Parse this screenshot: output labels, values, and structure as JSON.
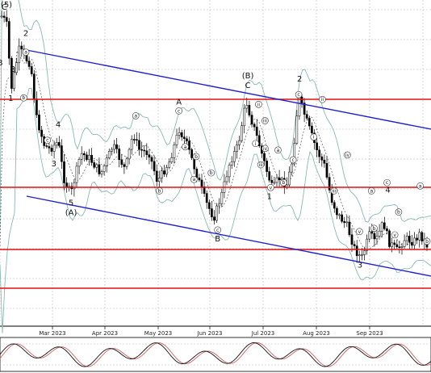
{
  "chart_data": {
    "type": "candlestick",
    "title": "",
    "xlabel": "",
    "ylabel": "",
    "x_ticks": [
      "Mar 2023",
      "Apr 2023",
      "May 2023",
      "Jun 2023",
      "Jul 2023",
      "Aug 2023",
      "Sep 2023"
    ],
    "grid": true,
    "indicators": [
      "bollinger-bands",
      "stochastic-oscillator"
    ],
    "colors": {
      "grid": "#b7b7b7",
      "candle": "#000000",
      "channel": "#2020d0",
      "support_resistance": "#e01010",
      "bollinger": "#8ab9b0",
      "stoch_main": "#111111",
      "stoch_signal": "#d06060"
    },
    "wave_labels": [
      {
        "text": "(5)",
        "x": 0.015,
        "y": 0.01
      },
      {
        "text": "C",
        "x": 0.01,
        "y": 0.03
      },
      {
        "text": "2",
        "x": 0.06,
        "y": 0.11
      },
      {
        "text": "3",
        "x": 0.03,
        "y": 0.22
      },
      {
        "text": "B",
        "x": 0.0,
        "y": 0.2
      },
      {
        "text": "1",
        "x": 0.025,
        "y": 0.31
      },
      {
        "text": "4",
        "x": 0.135,
        "y": 0.39
      },
      {
        "text": "3",
        "x": 0.125,
        "y": 0.51
      },
      {
        "text": "5",
        "x": 0.165,
        "y": 0.63
      },
      {
        "text": "(A)",
        "x": 0.165,
        "y": 0.66
      },
      {
        "text": "A",
        "x": 0.415,
        "y": 0.32
      },
      {
        "text": "(B)",
        "x": 0.575,
        "y": 0.24
      },
      {
        "text": "C",
        "x": 0.575,
        "y": 0.27
      },
      {
        "text": "B",
        "x": 0.505,
        "y": 0.74
      },
      {
        "text": "2",
        "x": 0.695,
        "y": 0.25
      },
      {
        "text": "1",
        "x": 0.625,
        "y": 0.61
      },
      {
        "text": "4",
        "x": 0.9,
        "y": 0.59
      },
      {
        "text": "3",
        "x": 0.835,
        "y": 0.82
      }
    ],
    "sub_labels": [
      {
        "text": "a",
        "x": 0.06,
        "y": 0.16
      },
      {
        "text": "b",
        "x": 0.055,
        "y": 0.3
      },
      {
        "text": "c",
        "x": 0.11,
        "y": 0.43
      },
      {
        "text": "a",
        "x": 0.315,
        "y": 0.355
      },
      {
        "text": "b",
        "x": 0.37,
        "y": 0.585
      },
      {
        "text": "c",
        "x": 0.415,
        "y": 0.34
      },
      {
        "text": "a",
        "x": 0.43,
        "y": 0.45
      },
      {
        "text": "b",
        "x": 0.455,
        "y": 0.48
      },
      {
        "text": "c",
        "x": 0.505,
        "y": 0.705
      },
      {
        "text": "a",
        "x": 0.45,
        "y": 0.55
      },
      {
        "text": "b",
        "x": 0.49,
        "y": 0.53
      },
      {
        "text": "ii",
        "x": 0.6,
        "y": 0.32
      },
      {
        "text": "iii",
        "x": 0.615,
        "y": 0.37
      },
      {
        "text": "iv",
        "x": 0.615,
        "y": 0.455
      },
      {
        "text": "i",
        "x": 0.593,
        "y": 0.44
      },
      {
        "text": "iii",
        "x": 0.605,
        "y": 0.505
      },
      {
        "text": "v",
        "x": 0.628,
        "y": 0.575
      },
      {
        "text": "a",
        "x": 0.645,
        "y": 0.46
      },
      {
        "text": "b",
        "x": 0.658,
        "y": 0.56
      },
      {
        "text": "c",
        "x": 0.68,
        "y": 0.49
      },
      {
        "text": "c",
        "x": 0.693,
        "y": 0.29
      },
      {
        "text": "ii",
        "x": 0.748,
        "y": 0.305
      },
      {
        "text": "i",
        "x": 0.728,
        "y": 0.42
      },
      {
        "text": "iv",
        "x": 0.806,
        "y": 0.475
      },
      {
        "text": "iii",
        "x": 0.775,
        "y": 0.585
      },
      {
        "text": "v",
        "x": 0.834,
        "y": 0.71
      },
      {
        "text": "a",
        "x": 0.862,
        "y": 0.585
      },
      {
        "text": "b",
        "x": 0.868,
        "y": 0.7
      },
      {
        "text": "c",
        "x": 0.898,
        "y": 0.56
      },
      {
        "text": "v",
        "x": 0.916,
        "y": 0.72
      },
      {
        "text": "b",
        "x": 0.925,
        "y": 0.65
      },
      {
        "text": "a",
        "x": 0.975,
        "y": 0.57
      },
      {
        "text": "b",
        "x": 1.0,
        "y": 0.74
      }
    ]
  }
}
